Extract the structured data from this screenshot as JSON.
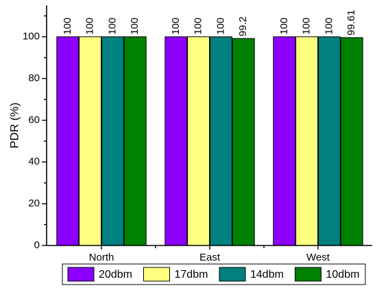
{
  "chart_data": {
    "type": "bar",
    "categories": [
      "North",
      "East",
      "West"
    ],
    "series": [
      {
        "name": "20dbm",
        "values": [
          100,
          100,
          100
        ],
        "labels": [
          "100",
          "100",
          "100"
        ],
        "color": "#8B00FF"
      },
      {
        "name": "17dbm",
        "values": [
          100,
          100,
          100
        ],
        "labels": [
          "100",
          "100",
          "100"
        ],
        "color": "#FFFF80"
      },
      {
        "name": "14dbm",
        "values": [
          100,
          100,
          100
        ],
        "labels": [
          "100",
          "100",
          "100"
        ],
        "color": "#008080"
      },
      {
        "name": "10dbm",
        "values": [
          100,
          99.2,
          99.61
        ],
        "labels": [
          "100",
          "99.2",
          "99.61"
        ],
        "color": "#008000"
      }
    ],
    "xlabel": "",
    "ylabel": "PDR (%)",
    "ylim": [
      0,
      115
    ],
    "yticks": [
      0,
      20,
      40,
      60,
      80,
      100
    ],
    "grid": false,
    "legend_position": "bottom"
  }
}
